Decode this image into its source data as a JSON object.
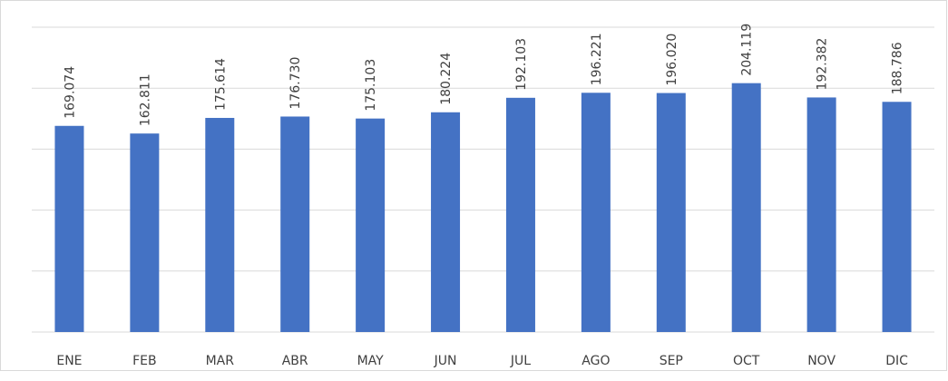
{
  "chart_data": {
    "type": "bar",
    "categories": [
      "ENE",
      "FEB",
      "MAR",
      "ABR",
      "MAY",
      "JUN",
      "JUL",
      "AGO",
      "SEP",
      "OCT",
      "NOV",
      "DIC"
    ],
    "values": [
      169074,
      162811,
      175614,
      176730,
      175103,
      180224,
      192103,
      196221,
      196020,
      204119,
      192382,
      188786
    ],
    "value_labels": [
      "169.074",
      "162.811",
      "175.614",
      "176.730",
      "175.103",
      "180.224",
      "192.103",
      "196.221",
      "196.020",
      "204.119",
      "192.382",
      "188.786"
    ],
    "color": "#4472c4",
    "ylim": [
      0,
      250000
    ],
    "yticks": [
      0,
      50000,
      100000,
      150000,
      200000,
      250000
    ],
    "grid": true
  }
}
